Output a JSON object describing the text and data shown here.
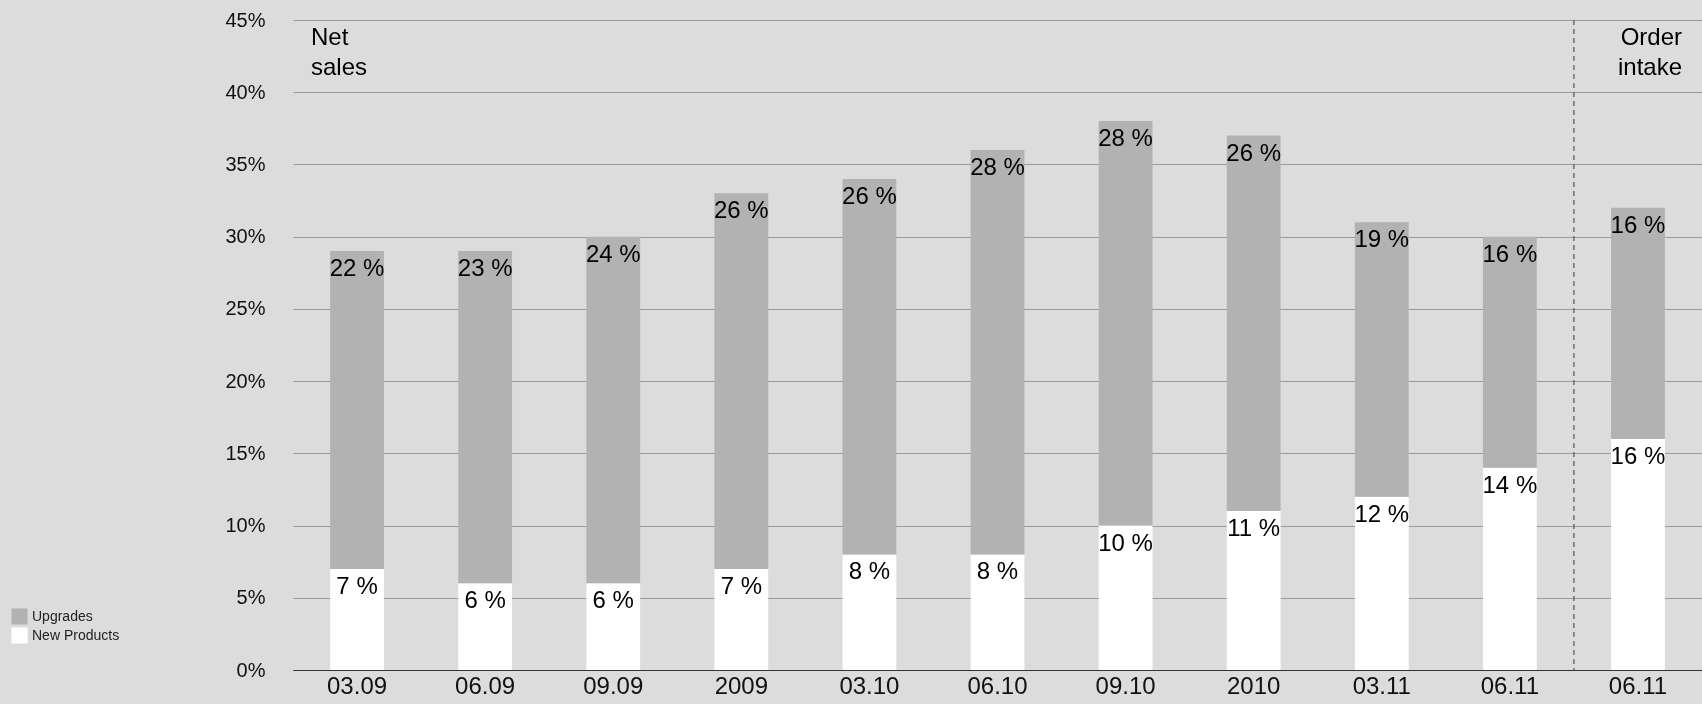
{
  "chart_data": {
    "type": "bar",
    "stacked": true,
    "categories": [
      "03.09",
      "06.09",
      "09.09",
      "2009",
      "03.10",
      "06.10",
      "09.10",
      "2010",
      "03.11",
      "06.11",
      "06.11"
    ],
    "series": [
      {
        "name": "New Products",
        "color": "#ffffff",
        "values": [
          7,
          6,
          6,
          7,
          8,
          8,
          10,
          11,
          12,
          14,
          16
        ],
        "value_labels": [
          "7 %",
          "6 %",
          "6 %",
          "7 %",
          "8 %",
          "8 %",
          "10 %",
          "11 %",
          "12 %",
          "14 %",
          "16 %"
        ]
      },
      {
        "name": "Upgrades",
        "color": "#b2b2b2",
        "values": [
          22,
          23,
          24,
          26,
          26,
          28,
          28,
          26,
          19,
          16,
          16
        ],
        "value_labels": [
          "22 %",
          "23 %",
          "24 %",
          "26 %",
          "26 %",
          "28 %",
          "28 %",
          "26 %",
          "19 %",
          "16 %",
          "16 %"
        ]
      }
    ],
    "ylim": [
      0,
      45
    ],
    "yticks": [
      {
        "value": 0,
        "label": "0%"
      },
      {
        "value": 5,
        "label": "5%"
      },
      {
        "value": 10,
        "label": "10%"
      },
      {
        "value": 15,
        "label": "15%"
      },
      {
        "value": 20,
        "label": "20%"
      },
      {
        "value": 25,
        "label": "25%"
      },
      {
        "value": 30,
        "label": "30%"
      },
      {
        "value": 35,
        "label": "35%"
      },
      {
        "value": 40,
        "label": "40%"
      },
      {
        "value": 45,
        "label": "45%"
      }
    ],
    "grid": "y",
    "legend": "bottom left",
    "ref_lines": [
      {
        "axis": "x",
        "value": "06.11",
        "line_style": "dashed",
        "color": "#555555"
      }
    ],
    "annotations": [
      "Net sales",
      "Order intake"
    ]
  }
}
